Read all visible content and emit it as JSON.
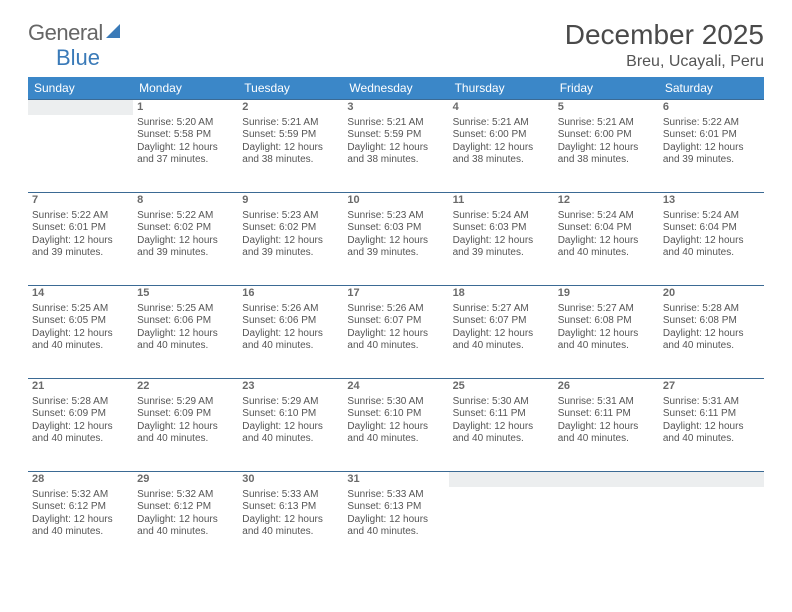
{
  "brand": {
    "part1": "General",
    "part2": "Blue"
  },
  "title": "December 2025",
  "location": "Breu, Ucayali, Peru",
  "colors": {
    "header_bg": "#3b87c8",
    "header_text": "#ffffff",
    "row_border": "#3b6a94",
    "daynum_bg": "#eceeef",
    "text": "#555555",
    "title_text": "#4a4a4a"
  },
  "fonts": {
    "title_pt": 28,
    "location_pt": 16,
    "dow_pt": 12,
    "daynum_pt": 11,
    "body_pt": 10
  },
  "dow": [
    "Sunday",
    "Monday",
    "Tuesday",
    "Wednesday",
    "Thursday",
    "Friday",
    "Saturday"
  ],
  "weeks": [
    [
      {
        "n": "",
        "sr": "",
        "ss": "",
        "dl": ""
      },
      {
        "n": "1",
        "sr": "Sunrise: 5:20 AM",
        "ss": "Sunset: 5:58 PM",
        "dl": "Daylight: 12 hours and 37 minutes."
      },
      {
        "n": "2",
        "sr": "Sunrise: 5:21 AM",
        "ss": "Sunset: 5:59 PM",
        "dl": "Daylight: 12 hours and 38 minutes."
      },
      {
        "n": "3",
        "sr": "Sunrise: 5:21 AM",
        "ss": "Sunset: 5:59 PM",
        "dl": "Daylight: 12 hours and 38 minutes."
      },
      {
        "n": "4",
        "sr": "Sunrise: 5:21 AM",
        "ss": "Sunset: 6:00 PM",
        "dl": "Daylight: 12 hours and 38 minutes."
      },
      {
        "n": "5",
        "sr": "Sunrise: 5:21 AM",
        "ss": "Sunset: 6:00 PM",
        "dl": "Daylight: 12 hours and 38 minutes."
      },
      {
        "n": "6",
        "sr": "Sunrise: 5:22 AM",
        "ss": "Sunset: 6:01 PM",
        "dl": "Daylight: 12 hours and 39 minutes."
      }
    ],
    [
      {
        "n": "7",
        "sr": "Sunrise: 5:22 AM",
        "ss": "Sunset: 6:01 PM",
        "dl": "Daylight: 12 hours and 39 minutes."
      },
      {
        "n": "8",
        "sr": "Sunrise: 5:22 AM",
        "ss": "Sunset: 6:02 PM",
        "dl": "Daylight: 12 hours and 39 minutes."
      },
      {
        "n": "9",
        "sr": "Sunrise: 5:23 AM",
        "ss": "Sunset: 6:02 PM",
        "dl": "Daylight: 12 hours and 39 minutes."
      },
      {
        "n": "10",
        "sr": "Sunrise: 5:23 AM",
        "ss": "Sunset: 6:03 PM",
        "dl": "Daylight: 12 hours and 39 minutes."
      },
      {
        "n": "11",
        "sr": "Sunrise: 5:24 AM",
        "ss": "Sunset: 6:03 PM",
        "dl": "Daylight: 12 hours and 39 minutes."
      },
      {
        "n": "12",
        "sr": "Sunrise: 5:24 AM",
        "ss": "Sunset: 6:04 PM",
        "dl": "Daylight: 12 hours and 40 minutes."
      },
      {
        "n": "13",
        "sr": "Sunrise: 5:24 AM",
        "ss": "Sunset: 6:04 PM",
        "dl": "Daylight: 12 hours and 40 minutes."
      }
    ],
    [
      {
        "n": "14",
        "sr": "Sunrise: 5:25 AM",
        "ss": "Sunset: 6:05 PM",
        "dl": "Daylight: 12 hours and 40 minutes."
      },
      {
        "n": "15",
        "sr": "Sunrise: 5:25 AM",
        "ss": "Sunset: 6:06 PM",
        "dl": "Daylight: 12 hours and 40 minutes."
      },
      {
        "n": "16",
        "sr": "Sunrise: 5:26 AM",
        "ss": "Sunset: 6:06 PM",
        "dl": "Daylight: 12 hours and 40 minutes."
      },
      {
        "n": "17",
        "sr": "Sunrise: 5:26 AM",
        "ss": "Sunset: 6:07 PM",
        "dl": "Daylight: 12 hours and 40 minutes."
      },
      {
        "n": "18",
        "sr": "Sunrise: 5:27 AM",
        "ss": "Sunset: 6:07 PM",
        "dl": "Daylight: 12 hours and 40 minutes."
      },
      {
        "n": "19",
        "sr": "Sunrise: 5:27 AM",
        "ss": "Sunset: 6:08 PM",
        "dl": "Daylight: 12 hours and 40 minutes."
      },
      {
        "n": "20",
        "sr": "Sunrise: 5:28 AM",
        "ss": "Sunset: 6:08 PM",
        "dl": "Daylight: 12 hours and 40 minutes."
      }
    ],
    [
      {
        "n": "21",
        "sr": "Sunrise: 5:28 AM",
        "ss": "Sunset: 6:09 PM",
        "dl": "Daylight: 12 hours and 40 minutes."
      },
      {
        "n": "22",
        "sr": "Sunrise: 5:29 AM",
        "ss": "Sunset: 6:09 PM",
        "dl": "Daylight: 12 hours and 40 minutes."
      },
      {
        "n": "23",
        "sr": "Sunrise: 5:29 AM",
        "ss": "Sunset: 6:10 PM",
        "dl": "Daylight: 12 hours and 40 minutes."
      },
      {
        "n": "24",
        "sr": "Sunrise: 5:30 AM",
        "ss": "Sunset: 6:10 PM",
        "dl": "Daylight: 12 hours and 40 minutes."
      },
      {
        "n": "25",
        "sr": "Sunrise: 5:30 AM",
        "ss": "Sunset: 6:11 PM",
        "dl": "Daylight: 12 hours and 40 minutes."
      },
      {
        "n": "26",
        "sr": "Sunrise: 5:31 AM",
        "ss": "Sunset: 6:11 PM",
        "dl": "Daylight: 12 hours and 40 minutes."
      },
      {
        "n": "27",
        "sr": "Sunrise: 5:31 AM",
        "ss": "Sunset: 6:11 PM",
        "dl": "Daylight: 12 hours and 40 minutes."
      }
    ],
    [
      {
        "n": "28",
        "sr": "Sunrise: 5:32 AM",
        "ss": "Sunset: 6:12 PM",
        "dl": "Daylight: 12 hours and 40 minutes."
      },
      {
        "n": "29",
        "sr": "Sunrise: 5:32 AM",
        "ss": "Sunset: 6:12 PM",
        "dl": "Daylight: 12 hours and 40 minutes."
      },
      {
        "n": "30",
        "sr": "Sunrise: 5:33 AM",
        "ss": "Sunset: 6:13 PM",
        "dl": "Daylight: 12 hours and 40 minutes."
      },
      {
        "n": "31",
        "sr": "Sunrise: 5:33 AM",
        "ss": "Sunset: 6:13 PM",
        "dl": "Daylight: 12 hours and 40 minutes."
      },
      {
        "n": "",
        "sr": "",
        "ss": "",
        "dl": ""
      },
      {
        "n": "",
        "sr": "",
        "ss": "",
        "dl": ""
      },
      {
        "n": "",
        "sr": "",
        "ss": "",
        "dl": ""
      }
    ]
  ]
}
